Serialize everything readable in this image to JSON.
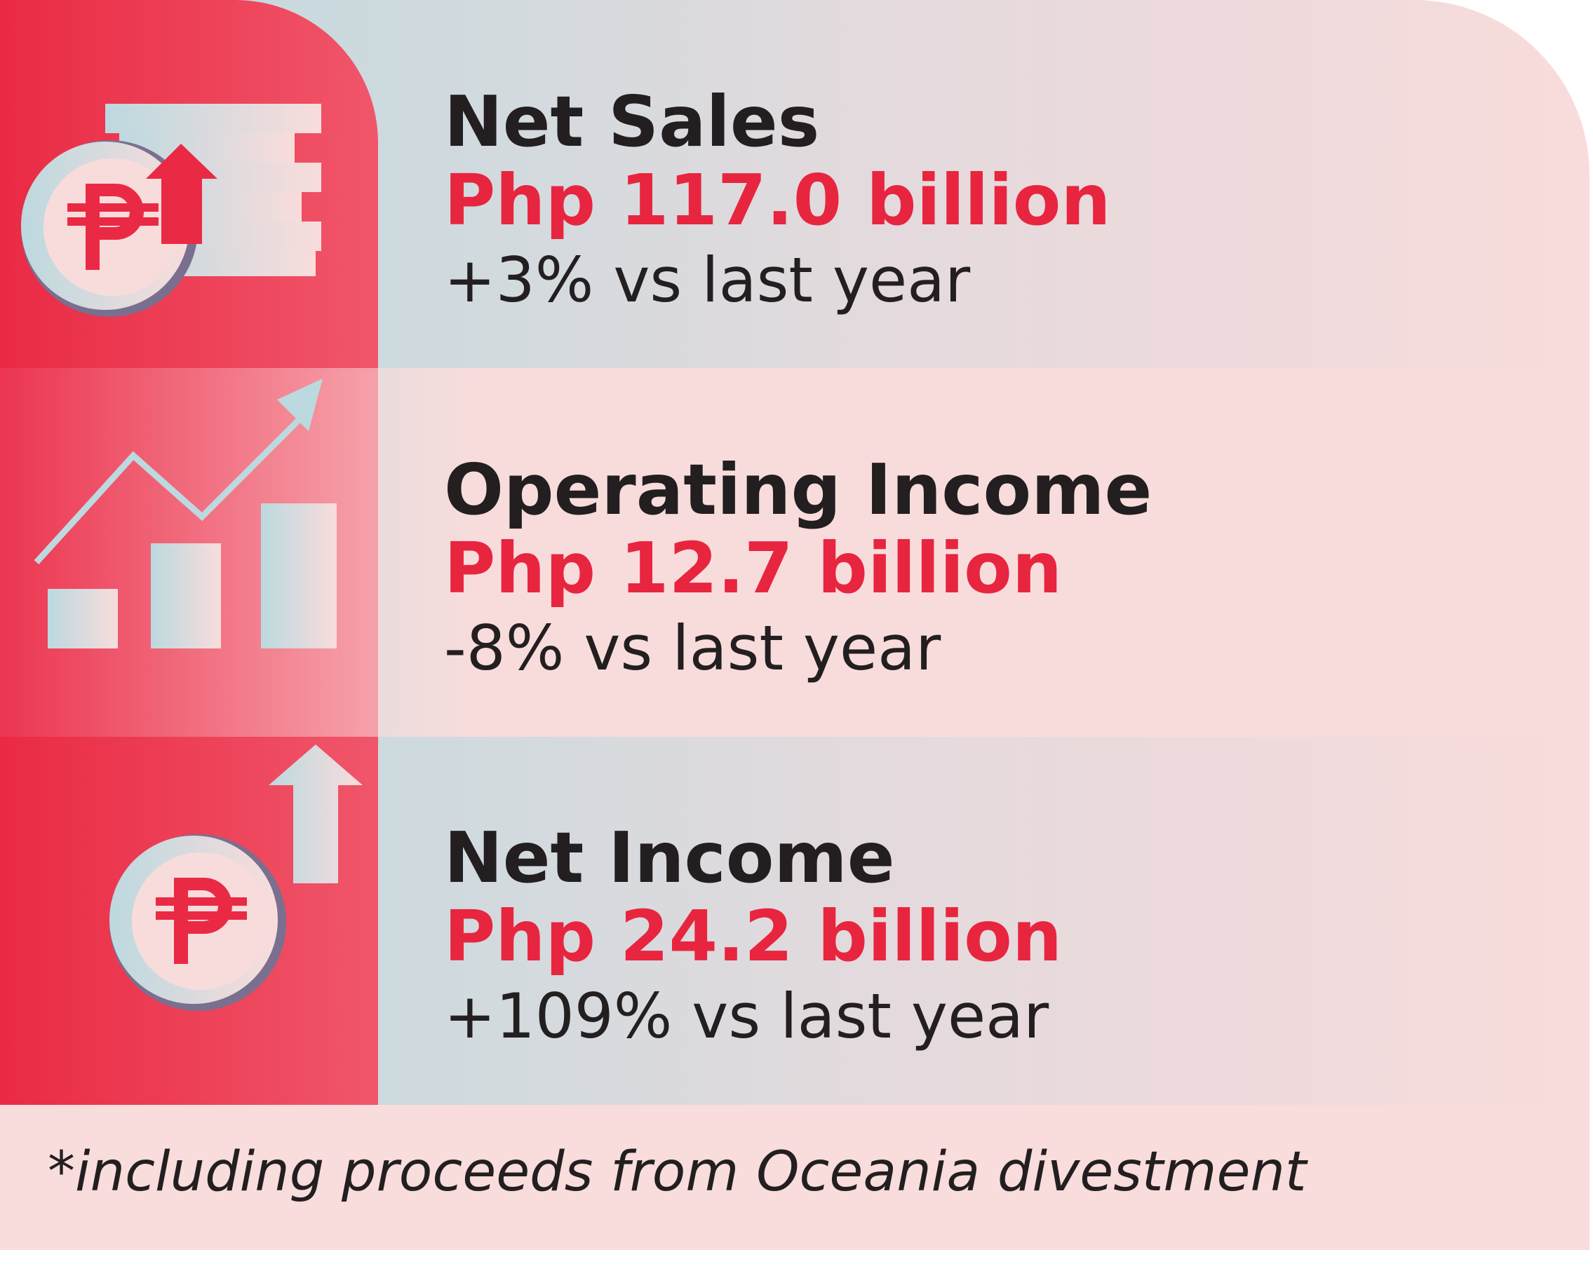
{
  "items": [
    {
      "title": "Net Sales",
      "value": "Php 117.0 billion",
      "change": "+3% vs last year"
    },
    {
      "title": "Operating Income",
      "value": "Php 12.7 billion",
      "change": "-8% vs last year"
    },
    {
      "title": "Net Income",
      "value": "Php 24.2 billion",
      "change": "+109% vs last year"
    }
  ],
  "footnote": "*including proceeds from Oceania divestment"
}
